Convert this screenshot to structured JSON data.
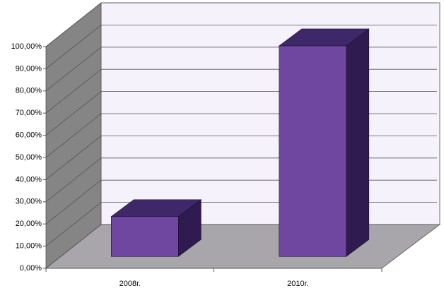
{
  "chart_data": {
    "type": "bar3d",
    "categories": [
      "2008г.",
      "2010г."
    ],
    "values": [
      18,
      95
    ],
    "colors": {
      "front": "#6f47a0",
      "side": "#2f1b4f",
      "top": "#3f2869"
    },
    "ylim": [
      0,
      100
    ],
    "yticks": [
      {
        "value": 0,
        "label": "0,00%"
      },
      {
        "value": 10,
        "label": "10,00%"
      },
      {
        "value": 20,
        "label": "20,00%"
      },
      {
        "value": 30,
        "label": "30,00%"
      },
      {
        "value": 40,
        "label": "40,00%"
      },
      {
        "value": 50,
        "label": "50,00%"
      },
      {
        "value": 60,
        "label": "60,00%"
      },
      {
        "value": 70,
        "label": "70,00%"
      },
      {
        "value": 80,
        "label": "80,00%"
      },
      {
        "value": 90,
        "label": "90,00%"
      },
      {
        "value": 100,
        "label": "100,00%"
      }
    ],
    "grid": true
  }
}
